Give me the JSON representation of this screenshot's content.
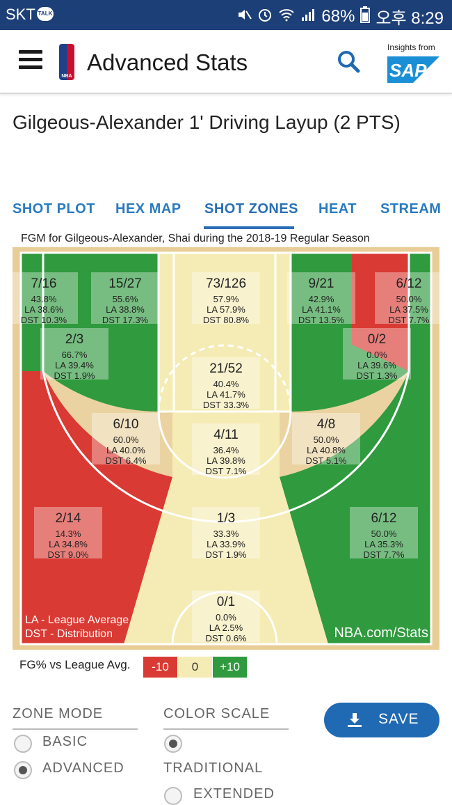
{
  "status_bar": {
    "carrier": "SKT",
    "talk_badge": "TALK",
    "battery": "68%",
    "time": "오후 8:29",
    "icons": [
      "mute-icon",
      "alarm-icon",
      "wifi-icon",
      "signal-icon",
      "battery-icon"
    ]
  },
  "app_bar": {
    "title": "Advanced Stats",
    "insights_text": "Insights from",
    "sap_text": "SAP",
    "icons": [
      "menu-icon",
      "nba-logo",
      "search-icon",
      "sap-logo"
    ]
  },
  "headline": "Gilgeous-Alexander 1' Driving Layup (2 PTS)",
  "tabs": [
    {
      "label": "SHOT PLOT",
      "active": false
    },
    {
      "label": "HEX MAP",
      "active": false
    },
    {
      "label": "SHOT ZONES",
      "active": true
    },
    {
      "label": "HEAT",
      "active": false
    },
    {
      "label": "STREAM",
      "active": false
    }
  ],
  "chart": {
    "caption": "FGM for Gilgeous-Alexander, Shai during the 2018-19 Regular Season",
    "footnote_la": "LA - League Average",
    "footnote_dst": "DST - Distribution",
    "watermark": "NBA.com/Stats",
    "colors": {
      "hot": "#d93a33",
      "neutral": "#f5ecb5",
      "cold": "#2f9a3e",
      "wood": "#ead3a1"
    },
    "zones": [
      {
        "id": "left-corner-3",
        "fgm_fga": "7/16",
        "fg_pct": "43.8%",
        "la": "LA 38.6%",
        "dst": "DST 10.3%",
        "rating": "cold"
      },
      {
        "id": "left-wing-mid",
        "fgm_fga": "15/27",
        "fg_pct": "55.6%",
        "la": "LA 38.8%",
        "dst": "DST 17.3%",
        "rating": "cold"
      },
      {
        "id": "restricted-area",
        "fgm_fga": "73/126",
        "fg_pct": "57.9%",
        "la": "LA 57.9%",
        "dst": "DST 80.8%",
        "rating": "neutral"
      },
      {
        "id": "right-wing-mid",
        "fgm_fga": "9/21",
        "fg_pct": "42.9%",
        "la": "LA 41.1%",
        "dst": "DST 13.5%",
        "rating": "neutral"
      },
      {
        "id": "right-corner-3",
        "fgm_fga": "6/12",
        "fg_pct": "50.0%",
        "la": "LA 37.5%",
        "dst": "DST 7.7%",
        "rating": "hot"
      },
      {
        "id": "left-baseline-mid",
        "fgm_fga": "2/3",
        "fg_pct": "66.7%",
        "la": "LA 39.4%",
        "dst": "DST 1.9%",
        "rating": "cold"
      },
      {
        "id": "right-baseline-mid",
        "fgm_fga": "0/2",
        "fg_pct": "0.0%",
        "la": "LA 39.6%",
        "dst": "DST 1.3%",
        "rating": "hot"
      },
      {
        "id": "paint-non-ra",
        "fgm_fga": "21/52",
        "fg_pct": "40.4%",
        "la": "LA 41.7%",
        "dst": "DST 33.3%",
        "rating": "neutral"
      },
      {
        "id": "left-elbow-mid",
        "fgm_fga": "6/10",
        "fg_pct": "60.0%",
        "la": "LA 40.0%",
        "dst": "DST 6.4%",
        "rating": "cold"
      },
      {
        "id": "right-elbow-mid",
        "fgm_fga": "4/8",
        "fg_pct": "50.0%",
        "la": "LA 40.8%",
        "dst": "DST 5.1%",
        "rating": "cold"
      },
      {
        "id": "top-key-mid",
        "fgm_fga": "4/11",
        "fg_pct": "36.4%",
        "la": "LA 39.8%",
        "dst": "DST 7.1%",
        "rating": "neutral"
      },
      {
        "id": "left-wing-3",
        "fgm_fga": "2/14",
        "fg_pct": "14.3%",
        "la": "LA 34.8%",
        "dst": "DST 9.0%",
        "rating": "hot"
      },
      {
        "id": "top-key-3",
        "fgm_fga": "1/3",
        "fg_pct": "33.3%",
        "la": "LA 33.9%",
        "dst": "DST 1.9%",
        "rating": "neutral"
      },
      {
        "id": "right-wing-3",
        "fgm_fga": "6/12",
        "fg_pct": "50.0%",
        "la": "LA 35.3%",
        "dst": "DST 7.7%",
        "rating": "cold"
      },
      {
        "id": "backcourt",
        "fgm_fga": "0/1",
        "fg_pct": "0.0%",
        "la": "LA 2.5%",
        "dst": "DST 0.6%",
        "rating": "neutral"
      }
    ]
  },
  "legend": {
    "title": "FG% vs League Avg.",
    "items": [
      {
        "label": "-10",
        "color": "#d93a33"
      },
      {
        "label": "0",
        "color": "#f5ecb5"
      },
      {
        "label": "+10",
        "color": "#2f9a3e"
      }
    ]
  },
  "controls": {
    "zone_mode": {
      "heading": "ZONE MODE",
      "options": [
        {
          "label": "BASIC",
          "selected": false
        },
        {
          "label": "ADVANCED",
          "selected": true
        }
      ]
    },
    "color_scale": {
      "heading": "COLOR SCALE",
      "options": [
        {
          "label": "TRADITIONAL",
          "selected": true
        },
        {
          "label": "EXTENDED",
          "selected": false
        }
      ]
    },
    "save_label": "SAVE"
  }
}
